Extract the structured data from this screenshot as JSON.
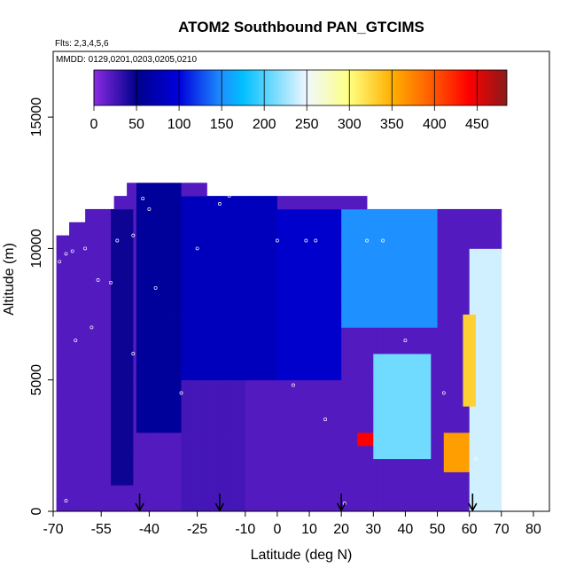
{
  "chart_data": {
    "type": "heatmap",
    "title": "ATOM2 Southbound PAN_GTCIMS",
    "annotations": [
      "Flts: 2,3,4,5,6",
      "MMDD: 0129,0201,0203,0205,0210"
    ],
    "xlabel": "Latitude (deg N)",
    "ylabel": "Altitude (m)",
    "xlim": [
      -70,
      85
    ],
    "ylim": [
      0,
      17500
    ],
    "x_ticks": [
      -70,
      -55,
      -40,
      -25,
      -10,
      0,
      10,
      20,
      30,
      40,
      50,
      60,
      70,
      80
    ],
    "y_ticks": [
      0,
      5000,
      10000,
      15000
    ],
    "colorbar": {
      "placement": "top-inset",
      "range": [
        0,
        485
      ],
      "ticks": [
        0,
        50,
        100,
        150,
        200,
        250,
        300,
        350,
        400,
        450
      ],
      "stops": [
        {
          "value": 0,
          "color": "#8a2be2"
        },
        {
          "value": 50,
          "color": "#00008b"
        },
        {
          "value": 100,
          "color": "#0000dd"
        },
        {
          "value": 150,
          "color": "#1e90ff"
        },
        {
          "value": 175,
          "color": "#00bfff"
        },
        {
          "value": 250,
          "color": "#f0f8ff"
        },
        {
          "value": 300,
          "color": "#ffff80"
        },
        {
          "value": 350,
          "color": "#ffb000"
        },
        {
          "value": 400,
          "color": "#ff5500"
        },
        {
          "value": 440,
          "color": "#ff0000"
        },
        {
          "value": 485,
          "color": "#8b1a1a"
        }
      ]
    },
    "grid": false,
    "data_bounds": {
      "lat_min": -69,
      "lat_max": 72,
      "alt_top_segments": [
        {
          "lat": [
            -69,
            -65
          ],
          "top": 10500
        },
        {
          "lat": [
            -65,
            -60
          ],
          "top": 11000
        },
        {
          "lat": [
            -60,
            -51
          ],
          "top": 11500
        },
        {
          "lat": [
            -51,
            -47
          ],
          "top": 12000
        },
        {
          "lat": [
            -47,
            -22
          ],
          "top": 12500
        },
        {
          "lat": [
            -22,
            0
          ],
          "top": 12000
        },
        {
          "lat": [
            0,
            28
          ],
          "top": 11800
        },
        {
          "lat": [
            28,
            70
          ],
          "top": 11500
        }
      ]
    },
    "regions": [
      {
        "lat": [
          -69,
          -52
        ],
        "alt": [
          0,
          10500
        ],
        "value": 20
      },
      {
        "lat": [
          -52,
          -45
        ],
        "alt": [
          1000,
          11500
        ],
        "value": 45
      },
      {
        "lat": [
          -44,
          -30
        ],
        "alt": [
          3000,
          12500
        ],
        "value": 60
      },
      {
        "lat": [
          -30,
          0
        ],
        "alt": [
          5000,
          12000
        ],
        "value": 80
      },
      {
        "lat": [
          -30,
          -10
        ],
        "alt": [
          0,
          5000
        ],
        "value": 25
      },
      {
        "lat": [
          0,
          20
        ],
        "alt": [
          5000,
          11500
        ],
        "value": 90
      },
      {
        "lat": [
          20,
          50
        ],
        "alt": [
          7000,
          11500
        ],
        "value": 150
      },
      {
        "lat": [
          30,
          48
        ],
        "alt": [
          2000,
          6000
        ],
        "value": 210
      },
      {
        "lat": [
          25,
          30
        ],
        "alt": [
          2500,
          3000
        ],
        "value": 440
      },
      {
        "lat": [
          52,
          60
        ],
        "alt": [
          1500,
          3000
        ],
        "value": 360
      },
      {
        "lat": [
          58,
          62
        ],
        "alt": [
          4000,
          7500
        ],
        "value": 330
      },
      {
        "lat": [
          60,
          70
        ],
        "alt": [
          0,
          10000
        ],
        "value": 240
      }
    ],
    "sample_points": [
      {
        "lat": -68,
        "alt": 9500
      },
      {
        "lat": -66,
        "alt": 9800
      },
      {
        "lat": -64,
        "alt": 9900
      },
      {
        "lat": -60,
        "alt": 10000
      },
      {
        "lat": -56,
        "alt": 8800
      },
      {
        "lat": -52,
        "alt": 8700
      },
      {
        "lat": -50,
        "alt": 10300
      },
      {
        "lat": -45,
        "alt": 10500
      },
      {
        "lat": -42,
        "alt": 11900
      },
      {
        "lat": -40,
        "alt": 11500
      },
      {
        "lat": -25,
        "alt": 10000
      },
      {
        "lat": -18,
        "alt": 11700
      },
      {
        "lat": -15,
        "alt": 12000
      },
      {
        "lat": 0,
        "alt": 10300
      },
      {
        "lat": 9,
        "alt": 10300
      },
      {
        "lat": 12,
        "alt": 10300
      },
      {
        "lat": 28,
        "alt": 10300
      },
      {
        "lat": 33,
        "alt": 10300
      },
      {
        "lat": -63,
        "alt": 6500
      },
      {
        "lat": -58,
        "alt": 7000
      },
      {
        "lat": -45,
        "alt": 6000
      },
      {
        "lat": -38,
        "alt": 8500
      },
      {
        "lat": -30,
        "alt": 4500
      },
      {
        "lat": 5,
        "alt": 4800
      },
      {
        "lat": 15,
        "alt": 3500
      },
      {
        "lat": 40,
        "alt": 6500
      },
      {
        "lat": 52,
        "alt": 4500
      },
      {
        "lat": 62,
        "alt": 2000
      },
      {
        "lat": -66,
        "alt": 400
      },
      {
        "lat": 21,
        "alt": 300
      }
    ],
    "arrows_lat": [
      -43,
      -18,
      20,
      61
    ]
  }
}
